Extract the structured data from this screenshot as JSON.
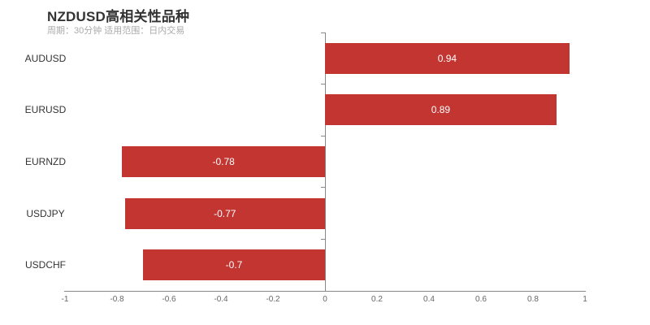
{
  "header": {
    "title": "NZDUSD高相关性品种",
    "subtitle": "周期：30分钟 适用范围：日内交易"
  },
  "chart_data": {
    "type": "bar",
    "orientation": "horizontal",
    "title": "NZDUSD高相关性品种",
    "subtitle": "周期：30分钟 适用范围：日内交易",
    "categories": [
      "AUDUSD",
      "EURUSD",
      "EURNZD",
      "USDJPY",
      "USDCHF"
    ],
    "values": [
      0.94,
      0.89,
      -0.78,
      -0.77,
      -0.7
    ],
    "value_labels": [
      "0.94",
      "0.89",
      "-0.78",
      "-0.77",
      "-0.7"
    ],
    "xlim": [
      -1,
      1
    ],
    "x_tick_labels": [
      "-1",
      "-0.8",
      "-0.6",
      "-0.4",
      "-0.2",
      "0",
      "0.2",
      "0.4",
      "0.6",
      "0.8",
      "1"
    ],
    "grid": false,
    "legend": false,
    "colors": {
      "bar": "#c23531",
      "value_label": "#ffffff",
      "axis": "#888888",
      "x_tick_label": "#666666",
      "category_label": "#333333",
      "title": "#333333",
      "subtitle": "#aaaaaa"
    }
  }
}
